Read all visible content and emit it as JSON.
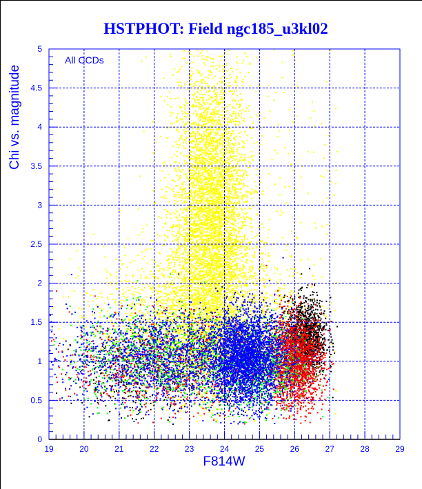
{
  "chart_data": {
    "type": "scatter",
    "title": "HSTPHOT: Field ngc185_u3kl02",
    "xlabel": "F814W",
    "ylabel": "Chi vs. magnitude",
    "annotation": "All CCDs",
    "xlim": [
      19,
      29
    ],
    "ylim": [
      0,
      5
    ],
    "xticks": [
      "19",
      "20",
      "21",
      "22",
      "23",
      "24",
      "25",
      "26",
      "27",
      "28",
      "29"
    ],
    "yticks": [
      "0",
      "0.5",
      "1",
      "1.5",
      "2",
      "2.5",
      "3",
      "3.5",
      "4",
      "4.5",
      "5"
    ],
    "grid": true,
    "series": [
      {
        "name": "yellow",
        "color": "#ffff00",
        "clusters": [
          {
            "n": 5000,
            "x_mean": 23.6,
            "x_sd": 0.55,
            "y_mean": 2.8,
            "y_sd": 1.0
          },
          {
            "n": 2200,
            "x_mean": 23.2,
            "x_sd": 1.4,
            "y_mean": 1.6,
            "y_sd": 0.45
          },
          {
            "n": 250,
            "x_mean": 25.5,
            "x_sd": 1.6,
            "y_mean": 3.0,
            "y_sd": 1.2
          }
        ]
      },
      {
        "name": "black",
        "color": "#000000",
        "clusters": [
          {
            "n": 1300,
            "x_mean": 26.3,
            "x_sd": 0.3,
            "y_mean": 1.3,
            "y_sd": 0.25
          },
          {
            "n": 250,
            "x_mean": 21.5,
            "x_sd": 0.9,
            "y_mean": 0.8,
            "y_sd": 0.3
          }
        ]
      },
      {
        "name": "red",
        "color": "#ff0000",
        "clusters": [
          {
            "n": 1800,
            "x_mean": 26.0,
            "x_sd": 0.4,
            "y_mean": 1.0,
            "y_sd": 0.3
          },
          {
            "n": 900,
            "x_mean": 22.5,
            "x_sd": 1.4,
            "y_mean": 0.95,
            "y_sd": 0.3
          }
        ]
      },
      {
        "name": "green",
        "color": "#00ff00",
        "clusters": [
          {
            "n": 900,
            "x_mean": 24.8,
            "x_sd": 0.7,
            "y_mean": 0.95,
            "y_sd": 0.3
          },
          {
            "n": 900,
            "x_mean": 22.0,
            "x_sd": 1.2,
            "y_mean": 1.05,
            "y_sd": 0.3
          }
        ]
      },
      {
        "name": "blue",
        "color": "#0000ff",
        "clusters": [
          {
            "n": 3000,
            "x_mean": 24.6,
            "x_sd": 0.55,
            "y_mean": 1.05,
            "y_sd": 0.3
          },
          {
            "n": 1600,
            "x_mean": 22.2,
            "x_sd": 1.3,
            "y_mean": 1.05,
            "y_sd": 0.3
          }
        ]
      }
    ]
  }
}
